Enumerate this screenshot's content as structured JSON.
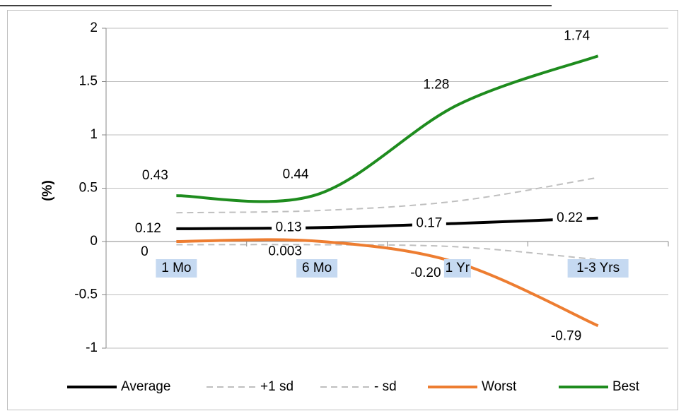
{
  "chart_data": {
    "type": "line",
    "y_label": "(%)",
    "categories": [
      "1 Mo",
      "6 Mo",
      "1 Yr",
      "1-3 Yrs"
    ],
    "ylim": [
      -1,
      2
    ],
    "yticks": [
      -1,
      -0.5,
      0,
      0.5,
      1,
      1.5,
      2
    ],
    "grid": true,
    "legend": "bottom",
    "series": [
      {
        "name": "Average",
        "color": "#000000",
        "dash": false,
        "values": [
          0.12,
          0.13,
          0.17,
          0.22
        ],
        "value_labels": [
          "0.12",
          "0.13",
          "0.17",
          "0.22"
        ]
      },
      {
        "name": "+1 sd",
        "color": "#bfbfbf",
        "dash": true,
        "values": [
          0.27,
          0.29,
          0.38,
          0.6
        ]
      },
      {
        "name": "- sd",
        "color": "#bfbfbf",
        "dash": true,
        "values": [
          -0.03,
          -0.03,
          -0.05,
          -0.17
        ]
      },
      {
        "name": "Worst",
        "color": "#ed7d31",
        "dash": false,
        "values": [
          0,
          0.003,
          -0.2,
          -0.79
        ],
        "value_labels": [
          "0",
          "0.003",
          "-0.20",
          "-0.79"
        ]
      },
      {
        "name": "Best",
        "color": "#1e8c1e",
        "dash": false,
        "values": [
          0.43,
          0.44,
          1.28,
          1.74
        ],
        "value_labels": [
          "0.43",
          "0.44",
          "1.28",
          "1.74"
        ]
      }
    ]
  }
}
